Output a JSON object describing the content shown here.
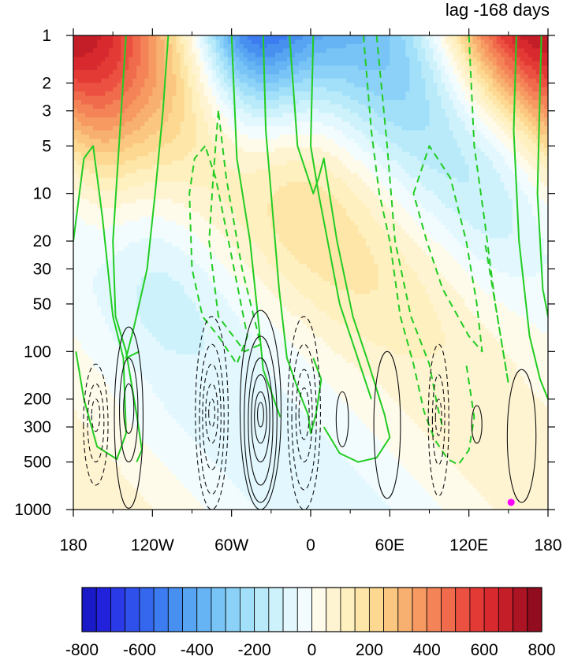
{
  "chart_data": {
    "type": "heatmap",
    "title": "lag -168 days",
    "x_ticks": [
      "180",
      "120W",
      "60W",
      "0",
      "60E",
      "120E",
      "180"
    ],
    "x_tick_values": [
      -180,
      -120,
      -60,
      0,
      60,
      120,
      180
    ],
    "y_ticks": [
      "1",
      "2",
      "3",
      "5",
      "10",
      "20",
      "30",
      "50",
      "100",
      "200",
      "300",
      "500",
      "1000"
    ],
    "y_tick_values": [
      1,
      2,
      3,
      5,
      10,
      20,
      30,
      50,
      100,
      200,
      300,
      500,
      1000
    ],
    "y_scale": "log",
    "y_inverted": true,
    "colorbar": {
      "labels": [
        "-800",
        "-600",
        "-400",
        "-200",
        "0",
        "200",
        "400",
        "600",
        "800"
      ],
      "min": -800,
      "max": 800,
      "step": 50,
      "colors": [
        "#1a1ac8",
        "#2222dc",
        "#2a3ae6",
        "#3050ec",
        "#3466ee",
        "#3c7cf0",
        "#4890f0",
        "#56a4f2",
        "#66b4f4",
        "#78c4f6",
        "#8cd2f8",
        "#a2e0fa",
        "#b8eafa",
        "#cef2fc",
        "#e2f8fe",
        "#f2fcff",
        "#fffbea",
        "#fff4d2",
        "#fff0c0",
        "#fde6a8",
        "#fcd890",
        "#fbc680",
        "#f8b070",
        "#f69a62",
        "#f48458",
        "#f06a4c",
        "#ec5040",
        "#e43a36",
        "#d82a2e",
        "#c41e28",
        "#ac1424",
        "#900c1e"
      ]
    },
    "shading_levels": [
      -500,
      -450,
      -400,
      -350,
      -300,
      -250,
      -200,
      -150,
      -100,
      -50,
      0,
      50,
      100,
      150,
      200,
      250,
      300,
      350,
      400,
      450
    ],
    "green_contour_levels": [
      -50,
      -25,
      25,
      50
    ],
    "black_contour_levels": [
      -20,
      -10,
      10,
      20
    ],
    "marker": {
      "lon": 152,
      "pressure": 900,
      "color": "#ff00ff"
    }
  }
}
